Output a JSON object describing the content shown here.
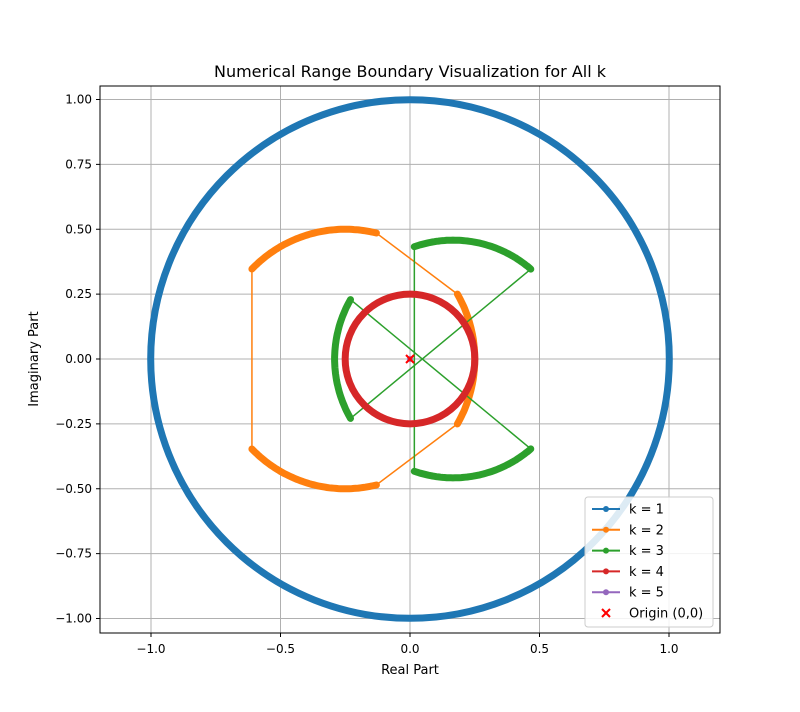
{
  "chart_data": {
    "type": "line",
    "title": "Numerical Range Boundary Visualization for All k",
    "xlabel": "Real Part",
    "ylabel": "Imaginary Part",
    "xlim": [
      -1.2,
      1.2
    ],
    "ylim": [
      -1.05,
      1.05
    ],
    "xticks": [
      -1.0,
      -0.5,
      0.0,
      0.5,
      1.0
    ],
    "xtick_labels": [
      "−1.0",
      "−0.5",
      "0.0",
      "0.5",
      "1.0"
    ],
    "yticks": [
      -1.0,
      -0.75,
      -0.5,
      -0.25,
      0.0,
      0.25,
      0.5,
      0.75,
      1.0
    ],
    "ytick_labels": [
      "−1.00",
      "−0.75",
      "−0.50",
      "−0.25",
      "0.00",
      "0.25",
      "0.50",
      "0.75",
      "1.00"
    ],
    "grid": true,
    "legend_position": "bottom-right",
    "series": [
      {
        "name": "k = 1",
        "color": "#1f77b4",
        "shape": "circle",
        "center": [
          0,
          0
        ],
        "radius": 1.0
      },
      {
        "name": "k = 2",
        "color": "#ff7f0e",
        "shape": "rounded-triangle",
        "center": [
          -0.25,
          0
        ],
        "radius": 0.5,
        "vertices": [
          [
            1.0,
            0.0
          ],
          [
            -0.5,
            0.866
          ],
          [
            -0.5,
            -0.866
          ]
        ],
        "arc_extent_deg": 30
      },
      {
        "name": "k = 3",
        "color": "#2ca02c",
        "shape": "rounded-triangle",
        "center": [
          0.167,
          0
        ],
        "radius": 0.458,
        "vertices": [
          [
            -0.5,
            0.0
          ],
          [
            0.25,
            0.433
          ],
          [
            0.25,
            -0.433
          ]
        ],
        "arc_extent_deg": 30
      },
      {
        "name": "k = 4",
        "color": "#d62728",
        "shape": "circle",
        "center": [
          0,
          0
        ],
        "radius": 0.25
      },
      {
        "name": "k = 5",
        "color": "#9467bd",
        "shape": "point",
        "center": [
          0,
          0
        ],
        "radius": 0
      }
    ],
    "annotations": [
      {
        "label": "Origin (0,0)",
        "x": 0,
        "y": 0,
        "marker": "x",
        "color": "#ff0000"
      }
    ]
  }
}
